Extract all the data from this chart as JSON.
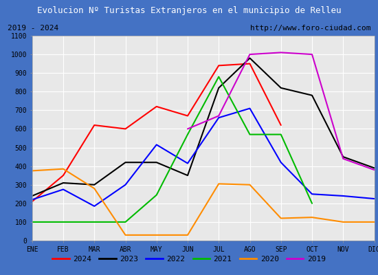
{
  "title": "Evolucion Nº Turistas Extranjeros en el municipio de Relleu",
  "subtitle_left": "2019 - 2024",
  "subtitle_right": "http://www.foro-ciudad.com",
  "months": [
    "ENE",
    "FEB",
    "MAR",
    "ABR",
    "MAY",
    "JUN",
    "JUL",
    "AGO",
    "SEP",
    "OCT",
    "NOV",
    "DIC"
  ],
  "series": {
    "2024": {
      "color": "#ff0000",
      "values": [
        210,
        350,
        620,
        600,
        720,
        670,
        940,
        950,
        620,
        null,
        null,
        null
      ]
    },
    "2023": {
      "color": "#000000",
      "values": [
        240,
        310,
        300,
        420,
        420,
        350,
        820,
        980,
        820,
        780,
        450,
        390
      ]
    },
    "2022": {
      "color": "#0000ff",
      "values": [
        220,
        275,
        185,
        300,
        515,
        415,
        660,
        710,
        420,
        250,
        240,
        225
      ]
    },
    "2021": {
      "color": "#00bb00",
      "values": [
        100,
        100,
        100,
        100,
        245,
        570,
        880,
        570,
        570,
        200,
        null,
        null
      ]
    },
    "2020": {
      "color": "#ff8c00",
      "values": [
        375,
        385,
        280,
        30,
        30,
        30,
        305,
        300,
        120,
        125,
        100,
        100
      ]
    },
    "2019": {
      "color": "#cc00cc",
      "values": [
        null,
        null,
        null,
        null,
        null,
        600,
        670,
        1000,
        1010,
        1000,
        440,
        380
      ]
    }
  },
  "ylim": [
    0,
    1100
  ],
  "yticks": [
    0,
    100,
    200,
    300,
    400,
    500,
    600,
    700,
    800,
    900,
    1000,
    1100
  ],
  "title_bg_color": "#4472c4",
  "title_text_color": "#ffffff",
  "subtitle_bg_color": "#eeeeee",
  "plot_bg_color": "#e8e8e8",
  "grid_color": "#ffffff",
  "border_color": "#4472c4",
  "legend_bg": "#ffffff"
}
